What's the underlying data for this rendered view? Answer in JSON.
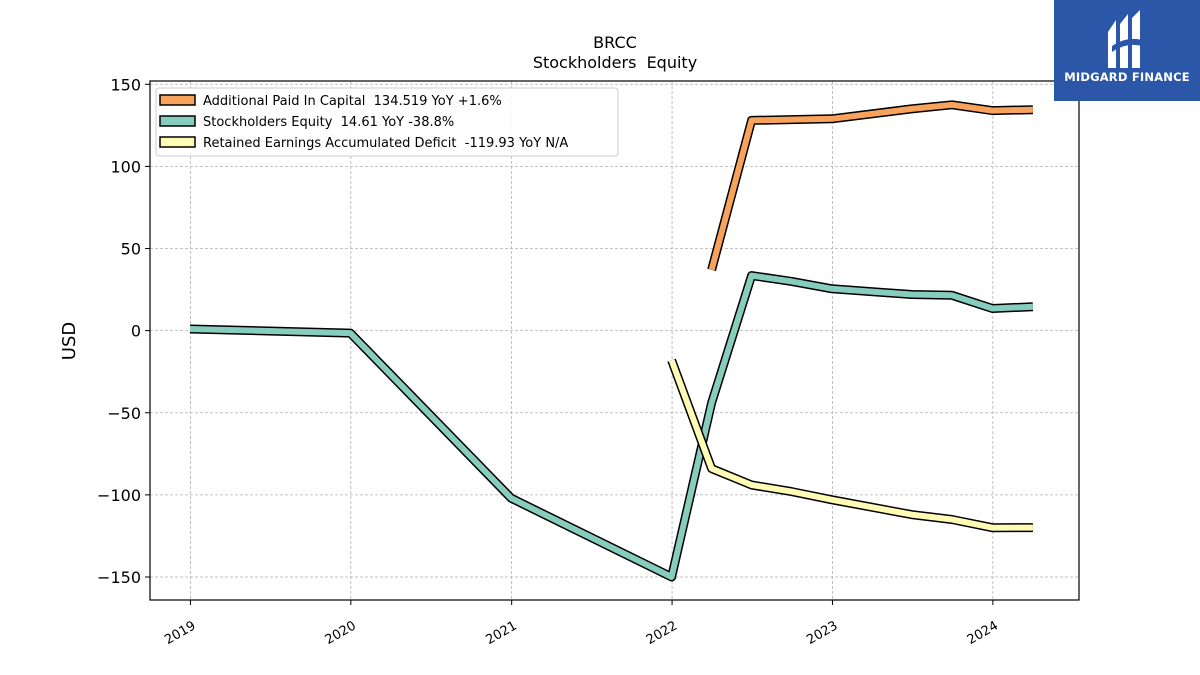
{
  "chart_data": {
    "type": "line",
    "title": "BRCC",
    "subtitle": "Stockholders  Equity",
    "ylabel": "USD",
    "xlabel": "",
    "xlim": [
      "2018-10-01",
      "2024-07-15"
    ],
    "ylim": [
      -164,
      152
    ],
    "x_ticks": [
      "2019",
      "2020",
      "2021",
      "2022",
      "2023",
      "2024"
    ],
    "y_ticks": [
      150,
      100,
      50,
      0,
      -50,
      -100,
      -150
    ],
    "y_tick_labels": [
      "150",
      "100",
      "50",
      "0",
      "−50",
      "−100",
      "−150"
    ],
    "grid": true,
    "legend_position": "top-left",
    "series": [
      {
        "name": "Additional Paid In Capital  134.519 YoY +1.6%",
        "color": "#f8a35c",
        "points": [
          [
            "2022-04-01",
            37
          ],
          [
            "2022-07-01",
            128
          ],
          [
            "2022-12-31",
            129
          ],
          [
            "2023-06-30",
            135
          ],
          [
            "2023-09-30",
            137.5
          ],
          [
            "2023-12-31",
            134
          ],
          [
            "2024-04-01",
            134.5
          ]
        ]
      },
      {
        "name": "Stockholders Equity  14.61 YoY -38.8%",
        "color": "#87cdbd",
        "points": [
          [
            "2018-12-31",
            1
          ],
          [
            "2019-12-31",
            -1.5
          ],
          [
            "2020-12-31",
            -102
          ],
          [
            "2021-12-31",
            -150
          ],
          [
            "2022-04-01",
            -44
          ],
          [
            "2022-07-01",
            33.5
          ],
          [
            "2022-09-30",
            30
          ],
          [
            "2022-12-31",
            25.5
          ],
          [
            "2023-06-30",
            22
          ],
          [
            "2023-09-30",
            21.5
          ],
          [
            "2023-12-31",
            13.5
          ],
          [
            "2024-04-01",
            14.6
          ]
        ]
      },
      {
        "name": "Retained Earnings Accumulated Deficit  -119.93 YoY N/A",
        "color": "#fffbb5",
        "points": [
          [
            "2021-12-31",
            -18
          ],
          [
            "2022-04-01",
            -84
          ],
          [
            "2022-07-01",
            -94
          ],
          [
            "2022-09-30",
            -98
          ],
          [
            "2022-12-31",
            -103
          ],
          [
            "2023-06-30",
            -112
          ],
          [
            "2023-09-30",
            -115
          ],
          [
            "2023-12-31",
            -120
          ],
          [
            "2024-04-01",
            -119.9
          ]
        ]
      }
    ]
  },
  "logo": {
    "text": "MIDGARD FINANCE",
    "icon": "midgard-logo-icon",
    "background": "#2c57a8"
  }
}
